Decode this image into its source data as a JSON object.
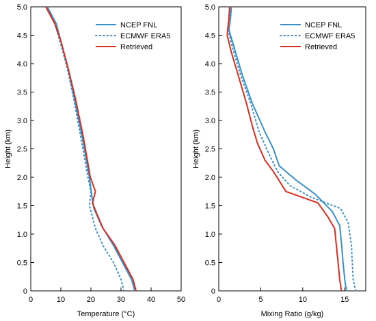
{
  "chart_data": [
    {
      "type": "line",
      "xlabel": "Temperature (°C)",
      "ylabel": "Height (km)",
      "xlim": [
        0,
        50
      ],
      "ylim": [
        0,
        5
      ],
      "xticks": [
        "0",
        "10",
        "20",
        "30",
        "40",
        "50"
      ],
      "yticks": [
        "0",
        "0.5",
        "1.0",
        "1.5",
        "2.0",
        "2.5",
        "3.0",
        "3.5",
        "4.0",
        "4.5",
        "5.0"
      ],
      "grid": false,
      "legend_position": "top-right",
      "series": [
        {
          "name": "NCEP FNL",
          "color": "#3a8fc7",
          "dash": "solid",
          "points": [
            [
              34.6,
              0
            ],
            [
              33.5,
              0.2
            ],
            [
              31,
              0.45
            ],
            [
              27.5,
              0.8
            ],
            [
              23.5,
              1.15
            ],
            [
              21,
              1.45
            ],
            [
              20.2,
              1.7
            ],
            [
              19.5,
              2.0
            ],
            [
              17.5,
              2.6
            ],
            [
              14.5,
              3.4
            ],
            [
              12.5,
              3.9
            ],
            [
              10.5,
              4.3
            ],
            [
              8.5,
              4.7
            ],
            [
              5.5,
              5.0
            ]
          ]
        },
        {
          "name": "ECMWF ERA5",
          "color": "#3a8fc7",
          "dash": "dotted",
          "points": [
            [
              31,
              0
            ],
            [
              30,
              0.2
            ],
            [
              27.5,
              0.5
            ],
            [
              24,
              0.8
            ],
            [
              21.5,
              1.1
            ],
            [
              19.5,
              1.5
            ],
            [
              20,
              1.75
            ],
            [
              19,
              2.0
            ],
            [
              17,
              2.6
            ],
            [
              14.2,
              3.4
            ],
            [
              12.2,
              3.9
            ],
            [
              10.2,
              4.3
            ],
            [
              8,
              4.7
            ],
            [
              5.5,
              5.0
            ]
          ]
        },
        {
          "name": "Retrieved",
          "color": "#d92d20",
          "dash": "solid",
          "points": [
            [
              35,
              0
            ],
            [
              34,
              0.2
            ],
            [
              31,
              0.5
            ],
            [
              28,
              0.8
            ],
            [
              24,
              1.1
            ],
            [
              22,
              1.35
            ],
            [
              20.5,
              1.55
            ],
            [
              21.5,
              1.75
            ],
            [
              19.8,
              2.0
            ],
            [
              17.5,
              2.7
            ],
            [
              14.8,
              3.4
            ],
            [
              12.5,
              3.9
            ],
            [
              10,
              4.4
            ],
            [
              8,
              4.7
            ],
            [
              5,
              5.0
            ]
          ]
        }
      ]
    },
    {
      "type": "line",
      "xlabel": "Mixing Ratio (g/kg)",
      "ylabel": "Height (km)",
      "xlim": [
        0,
        17.5
      ],
      "ylim": [
        0,
        5
      ],
      "xticks": [
        "0",
        "5",
        "10",
        "15"
      ],
      "yticks": [
        "0",
        "0.5",
        "1.0",
        "1.5",
        "2.0",
        "2.5",
        "3.0",
        "3.5",
        "4.0",
        "4.5",
        "5.0"
      ],
      "grid": false,
      "legend_position": "top-right",
      "series": [
        {
          "name": "NCEP FNL",
          "color": "#3a8fc7",
          "dash": "solid",
          "points": [
            [
              15.2,
              0
            ],
            [
              15,
              0.2
            ],
            [
              14.8,
              0.5
            ],
            [
              14.6,
              0.85
            ],
            [
              14.4,
              1.15
            ],
            [
              13.5,
              1.4
            ],
            [
              11.5,
              1.7
            ],
            [
              9.2,
              1.95
            ],
            [
              7.2,
              2.2
            ],
            [
              6.5,
              2.5
            ],
            [
              5.5,
              2.8
            ],
            [
              4,
              3.3
            ],
            [
              2.8,
              3.8
            ],
            [
              1.8,
              4.3
            ],
            [
              1.2,
              4.6
            ],
            [
              1.4,
              4.8
            ],
            [
              1.5,
              5.0
            ]
          ]
        },
        {
          "name": "ECMWF ERA5",
          "color": "#3a8fc7",
          "dash": "dotted",
          "points": [
            [
              16.3,
              0
            ],
            [
              16,
              0.2
            ],
            [
              15.9,
              0.5
            ],
            [
              15.8,
              0.8
            ],
            [
              15.6,
              1.0
            ],
            [
              15.4,
              1.2
            ],
            [
              14.5,
              1.45
            ],
            [
              11,
              1.65
            ],
            [
              8.5,
              1.85
            ],
            [
              7,
              2.1
            ],
            [
              6,
              2.4
            ],
            [
              4.8,
              2.8
            ],
            [
              3.8,
              3.3
            ],
            [
              2.6,
              3.8
            ],
            [
              1.6,
              4.3
            ],
            [
              1.2,
              4.55
            ],
            [
              1.3,
              4.8
            ],
            [
              1.4,
              5.0
            ]
          ]
        },
        {
          "name": "Retrieved",
          "color": "#d92d20",
          "dash": "solid",
          "points": [
            [
              14.6,
              0
            ],
            [
              14.4,
              0.2
            ],
            [
              14.2,
              0.5
            ],
            [
              14,
              0.8
            ],
            [
              13.8,
              1.1
            ],
            [
              13,
              1.3
            ],
            [
              11.8,
              1.55
            ],
            [
              8,
              1.75
            ],
            [
              6.5,
              2.1
            ],
            [
              5.5,
              2.3
            ],
            [
              4.6,
              2.6
            ],
            [
              4,
              2.9
            ],
            [
              3.3,
              3.3
            ],
            [
              2.3,
              3.8
            ],
            [
              1.5,
              4.2
            ],
            [
              1.0,
              4.5
            ],
            [
              1.2,
              4.8
            ],
            [
              1.3,
              5.0
            ]
          ]
        }
      ]
    }
  ]
}
